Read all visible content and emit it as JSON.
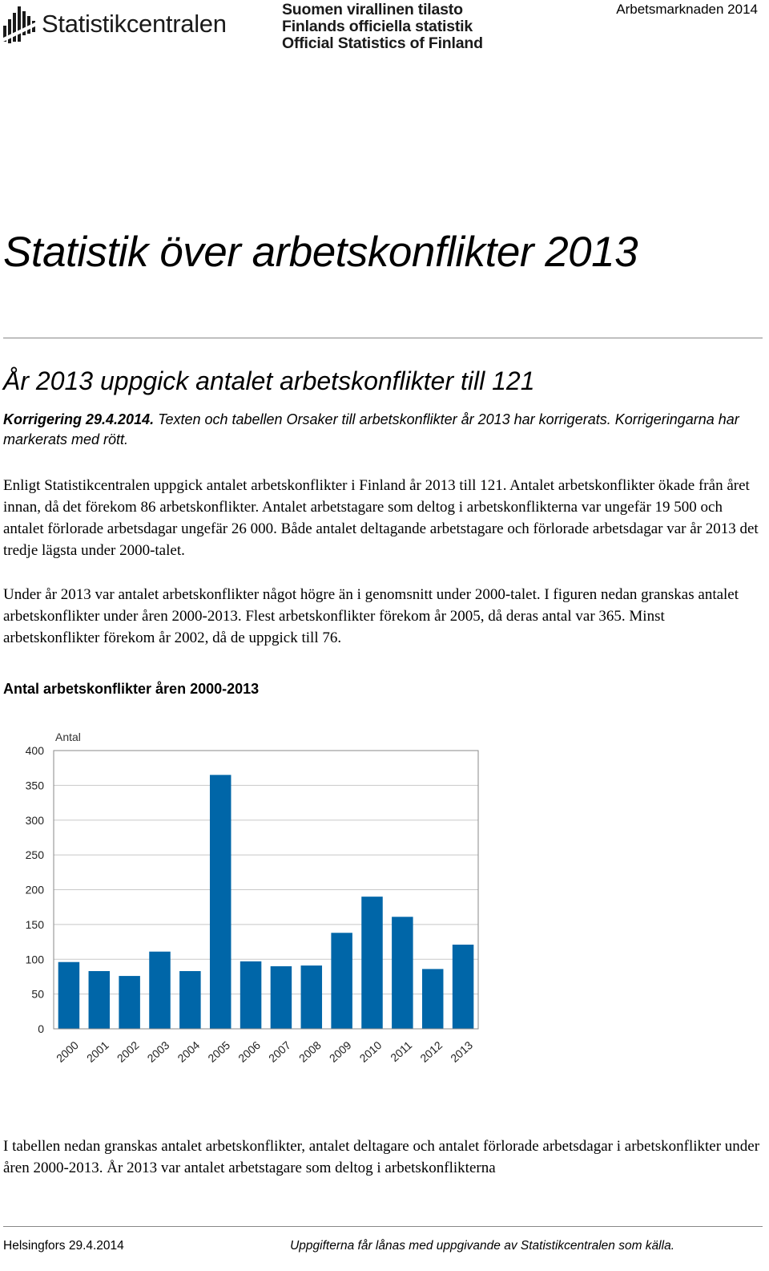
{
  "header": {
    "logo_icon": "statistics-finland-bars-icon",
    "wordmark": "Statistikcentralen",
    "tagline": [
      "Suomen virallinen tilasto",
      "Finlands officiella statistik",
      "Official Statistics of Finland"
    ],
    "series": "Arbetsmarknaden 2014"
  },
  "document": {
    "title": "Statistik över arbetskonflikter 2013",
    "lead_heading": "År 2013 uppgick antalet arbetskonflikter till 121",
    "correction_bold": "Korrigering 29.4.2014.",
    "correction_text": " Texten och tabellen Orsaker till arbetskonflikter år 2013 har korrigerats. Korrigeringarna har markerats med rött.",
    "para1": "Enligt Statistikcentralen uppgick antalet arbetskonflikter i Finland år 2013 till 121. Antalet arbetskonflikter ökade från året innan, då det förekom 86 arbetskonflikter. Antalet arbetstagare som deltog i arbetskonflikterna var ungefär 19 500 och antalet förlorade arbetsdagar ungefär 26 000. Både antalet deltagande arbetstagare och förlorade arbetsdagar var år 2013 det tredje lägsta under 2000-talet.",
    "para2": "Under år 2013 var antalet arbetskonflikter något högre än i genomsnitt under 2000-talet. I figuren nedan granskas antalet arbetskonflikter under åren 2000-2013. Flest arbetskonflikter förekom år 2005, då deras antal var 365. Minst arbetskonflikter förekom år 2002, då de uppgick till 76.",
    "chart_heading": "Antal arbetskonflikter åren 2000-2013",
    "para3": "I tabellen nedan granskas antalet arbetskonflikter, antalet deltagare och antalet förlorade arbetsdagar i arbetskonflikter under åren 2000-2013. År 2013 var antalet arbetstagare som deltog i arbetskonflikterna"
  },
  "chart_data": {
    "type": "bar",
    "title": "",
    "ylabel": "Antal",
    "xlabel": "",
    "categories": [
      "2000",
      "2001",
      "2002",
      "2003",
      "2004",
      "2005",
      "2006",
      "2007",
      "2008",
      "2009",
      "2010",
      "2011",
      "2012",
      "2013"
    ],
    "values": [
      96,
      83,
      76,
      111,
      83,
      365,
      97,
      90,
      91,
      138,
      190,
      161,
      86,
      121
    ],
    "ylim": [
      0,
      400
    ],
    "yticks": [
      0,
      50,
      100,
      150,
      200,
      250,
      300,
      350,
      400
    ],
    "grid": true,
    "bar_color": "#0066a8",
    "grid_color": "#c8c8c8"
  },
  "footer": {
    "left": "Helsingfors 29.4.2014",
    "right": "Uppgifterna får lånas med uppgivande av Statistikcentralen som källa."
  }
}
